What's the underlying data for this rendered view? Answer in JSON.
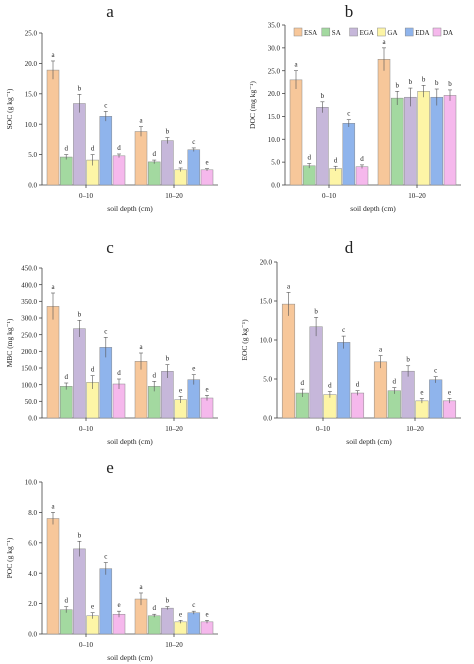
{
  "legend": {
    "entries": [
      {
        "label": "ESA",
        "color": "#F7C79A"
      },
      {
        "label": "SA",
        "color": "#A3D9A0"
      },
      {
        "label": "EGA",
        "color": "#C6B7DA"
      },
      {
        "label": "GA",
        "color": "#FDF5A6"
      },
      {
        "label": "EDA",
        "color": "#8FB4EC"
      },
      {
        "label": "DA",
        "color": "#F5B8EC"
      }
    ],
    "placement": "top-right of panel b"
  },
  "chart_data": [
    {
      "type": "bar",
      "panel": "a",
      "title": "a",
      "xlabel": "soil depth (cm)",
      "ylabel": "SOC (g kg⁻¹)",
      "categories": [
        "0–10",
        "10–20"
      ],
      "ylim": [
        0,
        25
      ],
      "yticks": [
        "0.0",
        "5.0",
        "10.0",
        "15.0",
        "20.0",
        "25.0"
      ],
      "series": [
        {
          "values": [
            18.9,
            8.8
          ],
          "errors": [
            1.5,
            0.8
          ],
          "letters": [
            "a",
            "a"
          ]
        },
        {
          "values": [
            4.6,
            3.8
          ],
          "errors": [
            0.4,
            0.3
          ],
          "letters": [
            "d",
            "d"
          ]
        },
        {
          "values": [
            13.4,
            7.3
          ],
          "errors": [
            1.5,
            0.5
          ],
          "letters": [
            "b",
            "b"
          ]
        },
        {
          "values": [
            4.1,
            2.5
          ],
          "errors": [
            0.9,
            0.3
          ],
          "letters": [
            "d",
            "e"
          ]
        },
        {
          "values": [
            11.3,
            5.8
          ],
          "errors": [
            0.8,
            0.3
          ],
          "letters": [
            "c",
            "c"
          ]
        },
        {
          "values": [
            4.8,
            2.5
          ],
          "errors": [
            0.3,
            0.2
          ],
          "letters": [
            "d",
            "e"
          ]
        }
      ]
    },
    {
      "type": "bar",
      "panel": "b",
      "title": "b",
      "xlabel": "soil depth (cm)",
      "ylabel": "DOC (mg kg⁻¹)",
      "categories": [
        "0–10",
        "10–20"
      ],
      "ylim": [
        0,
        35
      ],
      "yticks": [
        "0.0",
        "5.0",
        "10.0",
        "15.0",
        "20.0",
        "25.0",
        "30.0",
        "35.0"
      ],
      "series": [
        {
          "values": [
            23.0,
            27.5
          ],
          "errors": [
            2.0,
            2.5
          ],
          "letters": [
            "a",
            "a"
          ]
        },
        {
          "values": [
            4.2,
            19.0
          ],
          "errors": [
            0.5,
            1.5
          ],
          "letters": [
            "d",
            "b"
          ]
        },
        {
          "values": [
            17.0,
            19.2
          ],
          "errors": [
            1.2,
            2.0
          ],
          "letters": [
            "b",
            "b"
          ]
        },
        {
          "values": [
            3.6,
            20.5
          ],
          "errors": [
            0.5,
            1.3
          ],
          "letters": [
            "d",
            "b"
          ]
        },
        {
          "values": [
            13.5,
            19.2
          ],
          "errors": [
            0.8,
            1.8
          ],
          "letters": [
            "c",
            "b"
          ]
        },
        {
          "values": [
            4.0,
            19.6
          ],
          "errors": [
            0.4,
            1.2
          ],
          "letters": [
            "d",
            "b"
          ]
        }
      ]
    },
    {
      "type": "bar",
      "panel": "c",
      "title": "c",
      "xlabel": "soil depth (cm)",
      "ylabel": "MBC (mg kg⁻¹)",
      "categories": [
        "0–10",
        "10–20"
      ],
      "ylim": [
        0,
        450
      ],
      "yticks": [
        "0.0",
        "50.0",
        "100.0",
        "150.0",
        "200.0",
        "250.0",
        "300.0",
        "350.0",
        "400.0",
        "450.0"
      ],
      "series": [
        {
          "values": [
            335,
            170
          ],
          "errors": [
            40,
            25
          ],
          "letters": [
            "a",
            "a"
          ]
        },
        {
          "values": [
            95,
            95
          ],
          "errors": [
            10,
            15
          ],
          "letters": [
            "d",
            "d"
          ]
        },
        {
          "values": [
            268,
            140
          ],
          "errors": [
            25,
            20
          ],
          "letters": [
            "b",
            "b"
          ]
        },
        {
          "values": [
            107,
            55
          ],
          "errors": [
            20,
            10
          ],
          "letters": [
            "d",
            "e"
          ]
        },
        {
          "values": [
            212,
            115
          ],
          "errors": [
            30,
            15
          ],
          "letters": [
            "c",
            "e"
          ]
        },
        {
          "values": [
            102,
            60
          ],
          "errors": [
            15,
            8
          ],
          "letters": [
            "d",
            "e"
          ]
        }
      ]
    },
    {
      "type": "bar",
      "panel": "d",
      "title": "d",
      "xlabel": "soil depth (cm)",
      "ylabel": "EOC (g kg⁻¹)",
      "categories": [
        "0–10",
        "10–20"
      ],
      "ylim": [
        0,
        20
      ],
      "yticks": [
        "0.0",
        "5.0",
        "10.0",
        "15.0",
        "20.0"
      ],
      "series": [
        {
          "values": [
            14.6,
            7.2
          ],
          "errors": [
            1.5,
            0.8
          ],
          "letters": [
            "a",
            "a"
          ]
        },
        {
          "values": [
            3.2,
            3.5
          ],
          "errors": [
            0.5,
            0.4
          ],
          "letters": [
            "d",
            "d"
          ]
        },
        {
          "values": [
            11.7,
            6.0
          ],
          "errors": [
            1.2,
            0.7
          ],
          "letters": [
            "b",
            "b"
          ]
        },
        {
          "values": [
            3.0,
            2.2
          ],
          "errors": [
            0.4,
            0.3
          ],
          "letters": [
            "d",
            "e"
          ]
        },
        {
          "values": [
            9.7,
            4.9
          ],
          "errors": [
            0.8,
            0.4
          ],
          "letters": [
            "c",
            "c"
          ]
        },
        {
          "values": [
            3.2,
            2.2
          ],
          "errors": [
            0.3,
            0.3
          ],
          "letters": [
            "d",
            "e"
          ]
        }
      ]
    },
    {
      "type": "bar",
      "panel": "e",
      "title": "e",
      "xlabel": "soil depth (cm)",
      "ylabel": "POC (g kg⁻¹)",
      "categories": [
        "0–10",
        "10–20"
      ],
      "ylim": [
        0,
        10
      ],
      "yticks": [
        "0.0",
        "2.0",
        "4.0",
        "6.0",
        "8.0",
        "10.0"
      ],
      "series": [
        {
          "values": [
            7.6,
            2.3
          ],
          "errors": [
            0.4,
            0.4
          ],
          "letters": [
            "a",
            "a"
          ]
        },
        {
          "values": [
            1.6,
            1.2
          ],
          "errors": [
            0.2,
            0.1
          ],
          "letters": [
            "d",
            "d"
          ]
        },
        {
          "values": [
            5.6,
            1.7
          ],
          "errors": [
            0.5,
            0.1
          ],
          "letters": [
            "b",
            "b"
          ]
        },
        {
          "values": [
            1.2,
            0.8
          ],
          "errors": [
            0.2,
            0.1
          ],
          "letters": [
            "e",
            "e"
          ]
        },
        {
          "values": [
            4.3,
            1.4
          ],
          "errors": [
            0.4,
            0.1
          ],
          "letters": [
            "c",
            "c"
          ]
        },
        {
          "values": [
            1.3,
            0.8
          ],
          "errors": [
            0.2,
            0.1
          ],
          "letters": [
            "e",
            "e"
          ]
        }
      ]
    }
  ]
}
